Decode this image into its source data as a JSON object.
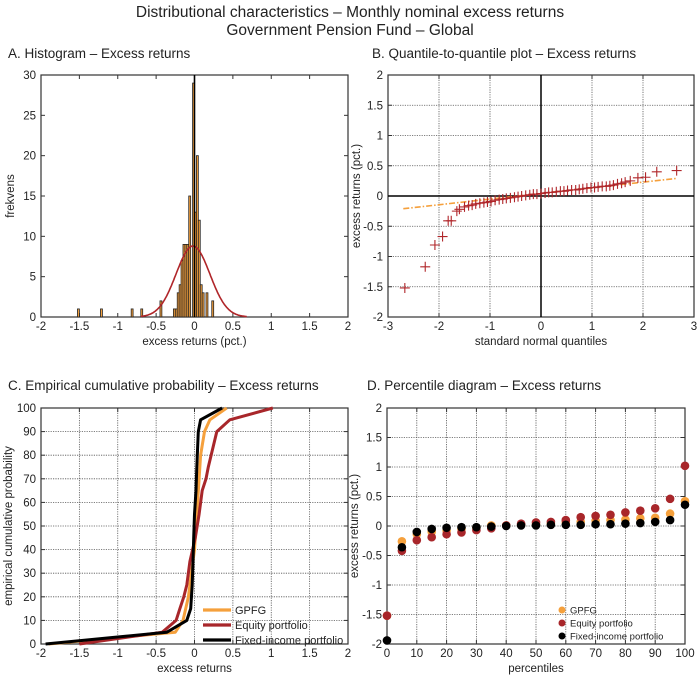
{
  "title": {
    "line1": "Distributional characteristics – Monthly nominal excess returns",
    "line2": "Government Pension Fund – Global"
  },
  "colors": {
    "gpfg": "#f5a03c",
    "equity": "#a8262a",
    "fixed_income": "#000000",
    "bar_fill": "#f5a03c",
    "normal_curve": "#b0262a",
    "qq_marker": "#b0262a",
    "qq_fit": "#f5a03c",
    "grid": "#555555"
  },
  "chart_data": [
    {
      "id": "A",
      "type": "bar",
      "title": "A. Histogram – Excess returns",
      "xlabel": "excess returns (pct.)",
      "ylabel": "frekvens",
      "xlim": [
        -2,
        2
      ],
      "ylim": [
        0,
        30
      ],
      "xticks": [
        -2,
        -1.5,
        -1,
        -0.5,
        0,
        0.5,
        1,
        1.5,
        2
      ],
      "xtick_labels": [
        "-2",
        "-1.5",
        "-1",
        "-0.5",
        "0",
        "0.5",
        "1",
        "1.5",
        "2"
      ],
      "yticks": [
        0,
        5,
        10,
        15,
        20,
        25,
        30
      ],
      "grid": false,
      "bin_width": 0.025,
      "bins": [
        {
          "x": -1.525,
          "count": 1
        },
        {
          "x": -1.225,
          "count": 1
        },
        {
          "x": -0.825,
          "count": 1
        },
        {
          "x": -0.7,
          "count": 1
        },
        {
          "x": -0.45,
          "count": 2
        },
        {
          "x": -0.275,
          "count": 1
        },
        {
          "x": -0.25,
          "count": 1
        },
        {
          "x": -0.225,
          "count": 3
        },
        {
          "x": -0.2,
          "count": 4
        },
        {
          "x": -0.175,
          "count": 7
        },
        {
          "x": -0.15,
          "count": 9
        },
        {
          "x": -0.125,
          "count": 9
        },
        {
          "x": -0.1,
          "count": 9
        },
        {
          "x": -0.075,
          "count": 15
        },
        {
          "x": -0.025,
          "count": 29
        },
        {
          "x": 0.0,
          "count": 13
        },
        {
          "x": 0.025,
          "count": 20
        },
        {
          "x": 0.05,
          "count": 12
        },
        {
          "x": 0.075,
          "count": 4
        },
        {
          "x": 0.1,
          "count": 3
        },
        {
          "x": 0.15,
          "count": 3
        },
        {
          "x": 0.225,
          "count": 2
        }
      ],
      "normal_fit": {
        "mean": -0.02,
        "peak": 8.8,
        "sd": 0.22,
        "x_range": [
          -0.7,
          0.68
        ]
      },
      "vline_x": 0
    },
    {
      "id": "B",
      "type": "scatter",
      "title": "B. Quantile-to-quantile plot – Excess returns",
      "xlabel": "standard normal quantiles",
      "ylabel": "excess returns (pct.)",
      "xlim": [
        -3,
        3
      ],
      "ylim": [
        -2,
        2
      ],
      "xticks": [
        -3,
        -2,
        -1,
        0,
        1,
        2,
        3
      ],
      "yticks": [
        -2,
        -1.5,
        -1,
        -0.5,
        0,
        0.5,
        1,
        1.5,
        2
      ],
      "grid": true,
      "points": [
        [
          -2.67,
          -1.52
        ],
        [
          -2.27,
          -1.17
        ],
        [
          -2.08,
          -0.81
        ],
        [
          -1.93,
          -0.67
        ],
        [
          -1.82,
          -0.41
        ],
        [
          -1.76,
          -0.41
        ],
        [
          -1.65,
          -0.25
        ],
        [
          -1.6,
          -0.22
        ],
        [
          -1.5,
          -0.18
        ],
        [
          -1.42,
          -0.16
        ],
        [
          -1.35,
          -0.15
        ],
        [
          -1.28,
          -0.13
        ],
        [
          -1.2,
          -0.12
        ],
        [
          -1.12,
          -0.11
        ],
        [
          -1.05,
          -0.1
        ],
        [
          -0.98,
          -0.09
        ],
        [
          -0.9,
          -0.07
        ],
        [
          -0.82,
          -0.06
        ],
        [
          -0.75,
          -0.05
        ],
        [
          -0.68,
          -0.04
        ],
        [
          -0.6,
          -0.03
        ],
        [
          -0.52,
          -0.02
        ],
        [
          -0.45,
          -0.01
        ],
        [
          -0.38,
          0.0
        ],
        [
          -0.3,
          0.01
        ],
        [
          -0.22,
          0.02
        ],
        [
          -0.15,
          0.03
        ],
        [
          -0.08,
          0.03
        ],
        [
          0.0,
          0.04
        ],
        [
          0.08,
          0.05
        ],
        [
          0.15,
          0.06
        ],
        [
          0.22,
          0.06
        ],
        [
          0.3,
          0.07
        ],
        [
          0.38,
          0.08
        ],
        [
          0.45,
          0.08
        ],
        [
          0.52,
          0.09
        ],
        [
          0.6,
          0.1
        ],
        [
          0.68,
          0.1
        ],
        [
          0.75,
          0.11
        ],
        [
          0.82,
          0.12
        ],
        [
          0.9,
          0.13
        ],
        [
          0.98,
          0.14
        ],
        [
          1.05,
          0.14
        ],
        [
          1.12,
          0.15
        ],
        [
          1.2,
          0.16
        ],
        [
          1.28,
          0.16
        ],
        [
          1.35,
          0.17
        ],
        [
          1.42,
          0.18
        ],
        [
          1.5,
          0.2
        ],
        [
          1.58,
          0.21
        ],
        [
          1.65,
          0.23
        ],
        [
          1.75,
          0.25
        ],
        [
          1.9,
          0.3
        ],
        [
          2.05,
          0.31
        ],
        [
          2.27,
          0.4
        ],
        [
          2.66,
          0.42
        ]
      ],
      "fit_line": {
        "x": [
          -2.7,
          2.65
        ],
        "y": [
          -0.21,
          0.29
        ]
      },
      "axes_lines": {
        "x0": true,
        "y0": true
      }
    },
    {
      "id": "C",
      "type": "line",
      "title": "C. Empirical cumulative probability – Excess returns",
      "xlabel": "excess returns",
      "ylabel": "empirical cumulative probability",
      "xlim": [
        -2,
        2
      ],
      "ylim": [
        0,
        100
      ],
      "xticks": [
        -2,
        -1.5,
        -1,
        -0.5,
        0,
        0.5,
        1,
        1.5,
        2
      ],
      "yticks": [
        0,
        10,
        20,
        30,
        40,
        50,
        60,
        70,
        80,
        90,
        100
      ],
      "grid": true,
      "legend": {
        "position": "lower right",
        "entries": [
          "GPFG",
          "Equity portfolio",
          "Fixed-income portfolio"
        ]
      },
      "series": [
        {
          "name": "GPFG",
          "key": "gpfg",
          "x": [
            -1.9,
            -0.25,
            -0.15,
            -0.08,
            -0.04,
            0.0,
            0.02,
            0.04,
            0.06,
            0.08,
            0.13,
            0.2,
            0.42
          ],
          "y": [
            0,
            5,
            10,
            20,
            30,
            40,
            50,
            60,
            70,
            80,
            90,
            95,
            100
          ]
        },
        {
          "name": "Equity portfolio",
          "key": "equity",
          "x": [
            -1.5,
            -0.42,
            -0.24,
            -0.19,
            -0.14,
            -0.1,
            -0.06,
            0.01,
            0.06,
            0.1,
            0.15,
            0.18,
            0.29,
            0.46,
            1.02
          ],
          "y": [
            0,
            5,
            10,
            15,
            20,
            25,
            35,
            45,
            55,
            65,
            70,
            75,
            90,
            95,
            100
          ]
        },
        {
          "name": "Fixed-income portfolio",
          "key": "fixed_income",
          "x": [
            -1.94,
            -0.36,
            -0.1,
            -0.05,
            -0.03,
            -0.02,
            -0.01,
            0.0,
            0.02,
            0.03,
            0.05,
            0.08,
            0.36
          ],
          "y": [
            0,
            5,
            10,
            15,
            25,
            35,
            45,
            55,
            65,
            75,
            90,
            95,
            100
          ]
        }
      ]
    },
    {
      "id": "D",
      "type": "scatter",
      "title": "D. Percentile diagram – Excess returns",
      "xlabel": "percentiles",
      "ylabel": "excess returns (pct.)",
      "xlim": [
        0,
        100
      ],
      "ylim": [
        -2,
        2
      ],
      "xticks": [
        0,
        10,
        20,
        30,
        40,
        50,
        60,
        70,
        80,
        90,
        100
      ],
      "yticks": [
        -2,
        -1.5,
        -1,
        -0.5,
        0,
        0.5,
        1,
        1.5,
        2
      ],
      "ytick_labels": [
        "-2",
        "-1.5",
        "-1",
        "-0.5",
        "0",
        "0.5",
        "1",
        "1.5",
        "2"
      ],
      "grid": true,
      "legend": {
        "position": "lower right",
        "entries": [
          "GPFG",
          "Equity portfolio",
          "Fixed-income portfolio"
        ]
      },
      "categories": [
        0,
        5,
        10,
        15,
        20,
        25,
        30,
        35,
        40,
        45,
        50,
        55,
        60,
        65,
        70,
        75,
        80,
        85,
        90,
        95,
        100
      ],
      "series": [
        {
          "name": "GPFG",
          "key": "gpfg",
          "values": [
            -1.52,
            -0.26,
            -0.14,
            -0.1,
            -0.08,
            -0.05,
            -0.03,
            0.01,
            0.01,
            0.02,
            0.03,
            0.04,
            0.06,
            0.07,
            0.09,
            0.1,
            0.11,
            0.13,
            0.14,
            0.21,
            0.42
          ]
        },
        {
          "name": "Equity portfolio",
          "key": "equity",
          "values": [
            -1.52,
            -0.42,
            -0.24,
            -0.19,
            -0.14,
            -0.11,
            -0.07,
            -0.04,
            0.01,
            0.04,
            0.06,
            0.07,
            0.1,
            0.15,
            0.17,
            0.19,
            0.23,
            0.26,
            0.3,
            0.46,
            1.02
          ]
        },
        {
          "name": "Fixed-income portfolio",
          "key": "fixed_income",
          "values": [
            -1.94,
            -0.36,
            -0.1,
            -0.05,
            -0.03,
            -0.02,
            -0.02,
            -0.01,
            0.0,
            0.01,
            0.01,
            0.02,
            0.02,
            0.02,
            0.03,
            0.03,
            0.04,
            0.05,
            0.07,
            0.1,
            0.36
          ]
        }
      ]
    }
  ]
}
